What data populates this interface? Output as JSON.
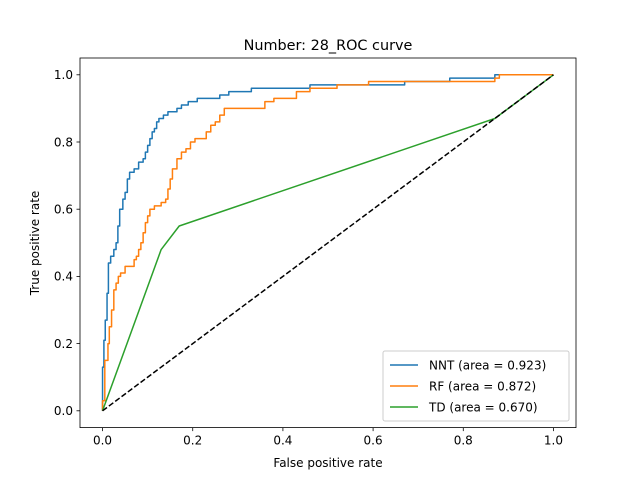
{
  "chart_data": {
    "type": "line",
    "title": "Number: 28_ROC curve",
    "xlabel": "False positive rate",
    "ylabel": "True positive rate",
    "xlim": [
      -0.05,
      1.05
    ],
    "ylim": [
      -0.05,
      1.05
    ],
    "xticks": [
      "0.0",
      "0.2",
      "0.4",
      "0.6",
      "0.8",
      "1.0"
    ],
    "yticks": [
      "0.0",
      "0.2",
      "0.4",
      "0.6",
      "0.8",
      "1.0"
    ],
    "grid": false,
    "legend_position": "lower-right",
    "series": [
      {
        "name": "NNT (area = 0.923)",
        "color": "#1f77b4",
        "points": [
          [
            0.0,
            0.0
          ],
          [
            0.0,
            0.13
          ],
          [
            0.003,
            0.13
          ],
          [
            0.003,
            0.21
          ],
          [
            0.006,
            0.21
          ],
          [
            0.006,
            0.27
          ],
          [
            0.01,
            0.27
          ],
          [
            0.01,
            0.35
          ],
          [
            0.013,
            0.35
          ],
          [
            0.013,
            0.44
          ],
          [
            0.018,
            0.44
          ],
          [
            0.018,
            0.46
          ],
          [
            0.025,
            0.46
          ],
          [
            0.025,
            0.48
          ],
          [
            0.03,
            0.48
          ],
          [
            0.03,
            0.5
          ],
          [
            0.034,
            0.5
          ],
          [
            0.034,
            0.55
          ],
          [
            0.038,
            0.55
          ],
          [
            0.038,
            0.6
          ],
          [
            0.045,
            0.6
          ],
          [
            0.045,
            0.63
          ],
          [
            0.05,
            0.63
          ],
          [
            0.05,
            0.65
          ],
          [
            0.055,
            0.65
          ],
          [
            0.055,
            0.69
          ],
          [
            0.06,
            0.69
          ],
          [
            0.06,
            0.71
          ],
          [
            0.07,
            0.71
          ],
          [
            0.07,
            0.72
          ],
          [
            0.08,
            0.72
          ],
          [
            0.08,
            0.74
          ],
          [
            0.09,
            0.74
          ],
          [
            0.09,
            0.75
          ],
          [
            0.095,
            0.75
          ],
          [
            0.095,
            0.77
          ],
          [
            0.1,
            0.77
          ],
          [
            0.1,
            0.79
          ],
          [
            0.105,
            0.79
          ],
          [
            0.105,
            0.81
          ],
          [
            0.11,
            0.81
          ],
          [
            0.11,
            0.83
          ],
          [
            0.115,
            0.83
          ],
          [
            0.115,
            0.84
          ],
          [
            0.12,
            0.84
          ],
          [
            0.12,
            0.86
          ],
          [
            0.125,
            0.86
          ],
          [
            0.125,
            0.87
          ],
          [
            0.135,
            0.87
          ],
          [
            0.135,
            0.88
          ],
          [
            0.145,
            0.88
          ],
          [
            0.145,
            0.89
          ],
          [
            0.165,
            0.89
          ],
          [
            0.165,
            0.9
          ],
          [
            0.175,
            0.9
          ],
          [
            0.175,
            0.91
          ],
          [
            0.19,
            0.91
          ],
          [
            0.19,
            0.92
          ],
          [
            0.21,
            0.92
          ],
          [
            0.21,
            0.93
          ],
          [
            0.26,
            0.93
          ],
          [
            0.26,
            0.94
          ],
          [
            0.28,
            0.94
          ],
          [
            0.28,
            0.95
          ],
          [
            0.33,
            0.95
          ],
          [
            0.33,
            0.96
          ],
          [
            0.46,
            0.96
          ],
          [
            0.46,
            0.97
          ],
          [
            0.67,
            0.97
          ],
          [
            0.67,
            0.98
          ],
          [
            0.77,
            0.98
          ],
          [
            0.77,
            0.99
          ],
          [
            0.87,
            0.99
          ],
          [
            0.87,
            1.0
          ],
          [
            1.0,
            1.0
          ]
        ]
      },
      {
        "name": "RF (area = 0.872)",
        "color": "#ff7f0e",
        "points": [
          [
            0.0,
            0.0
          ],
          [
            0.0,
            0.03
          ],
          [
            0.005,
            0.03
          ],
          [
            0.005,
            0.15
          ],
          [
            0.012,
            0.15
          ],
          [
            0.012,
            0.2
          ],
          [
            0.015,
            0.2
          ],
          [
            0.015,
            0.25
          ],
          [
            0.02,
            0.25
          ],
          [
            0.02,
            0.3
          ],
          [
            0.025,
            0.3
          ],
          [
            0.025,
            0.36
          ],
          [
            0.03,
            0.36
          ],
          [
            0.03,
            0.38
          ],
          [
            0.035,
            0.38
          ],
          [
            0.035,
            0.4
          ],
          [
            0.04,
            0.4
          ],
          [
            0.04,
            0.41
          ],
          [
            0.05,
            0.41
          ],
          [
            0.05,
            0.43
          ],
          [
            0.07,
            0.43
          ],
          [
            0.07,
            0.45
          ],
          [
            0.075,
            0.45
          ],
          [
            0.075,
            0.46
          ],
          [
            0.08,
            0.46
          ],
          [
            0.08,
            0.48
          ],
          [
            0.085,
            0.48
          ],
          [
            0.085,
            0.5
          ],
          [
            0.09,
            0.5
          ],
          [
            0.09,
            0.53
          ],
          [
            0.095,
            0.53
          ],
          [
            0.095,
            0.56
          ],
          [
            0.1,
            0.56
          ],
          [
            0.1,
            0.58
          ],
          [
            0.105,
            0.58
          ],
          [
            0.105,
            0.6
          ],
          [
            0.115,
            0.6
          ],
          [
            0.115,
            0.61
          ],
          [
            0.13,
            0.61
          ],
          [
            0.13,
            0.62
          ],
          [
            0.14,
            0.62
          ],
          [
            0.14,
            0.63
          ],
          [
            0.145,
            0.63
          ],
          [
            0.145,
            0.66
          ],
          [
            0.15,
            0.66
          ],
          [
            0.15,
            0.69
          ],
          [
            0.155,
            0.69
          ],
          [
            0.155,
            0.72
          ],
          [
            0.165,
            0.72
          ],
          [
            0.165,
            0.75
          ],
          [
            0.175,
            0.75
          ],
          [
            0.175,
            0.77
          ],
          [
            0.185,
            0.77
          ],
          [
            0.185,
            0.78
          ],
          [
            0.195,
            0.78
          ],
          [
            0.195,
            0.8
          ],
          [
            0.205,
            0.8
          ],
          [
            0.205,
            0.81
          ],
          [
            0.23,
            0.81
          ],
          [
            0.23,
            0.83
          ],
          [
            0.24,
            0.83
          ],
          [
            0.24,
            0.85
          ],
          [
            0.25,
            0.85
          ],
          [
            0.25,
            0.86
          ],
          [
            0.26,
            0.86
          ],
          [
            0.26,
            0.88
          ],
          [
            0.27,
            0.88
          ],
          [
            0.27,
            0.9
          ],
          [
            0.36,
            0.9
          ],
          [
            0.36,
            0.92
          ],
          [
            0.38,
            0.92
          ],
          [
            0.38,
            0.93
          ],
          [
            0.43,
            0.93
          ],
          [
            0.43,
            0.95
          ],
          [
            0.46,
            0.95
          ],
          [
            0.46,
            0.96
          ],
          [
            0.52,
            0.96
          ],
          [
            0.52,
            0.97
          ],
          [
            0.59,
            0.97
          ],
          [
            0.59,
            0.98
          ],
          [
            0.87,
            0.98
          ],
          [
            0.87,
            0.99
          ],
          [
            0.88,
            0.99
          ],
          [
            0.88,
            1.0
          ],
          [
            1.0,
            1.0
          ]
        ]
      },
      {
        "name": "TD (area = 0.670)",
        "color": "#2ca02c",
        "points": [
          [
            0.0,
            0.0
          ],
          [
            0.13,
            0.48
          ],
          [
            0.17,
            0.55
          ],
          [
            0.87,
            0.87
          ],
          [
            1.0,
            1.0
          ]
        ]
      }
    ],
    "reference_line": {
      "style": "dashed",
      "color": "#000000",
      "points": [
        [
          0.0,
          0.0
        ],
        [
          1.0,
          1.0
        ]
      ]
    }
  }
}
